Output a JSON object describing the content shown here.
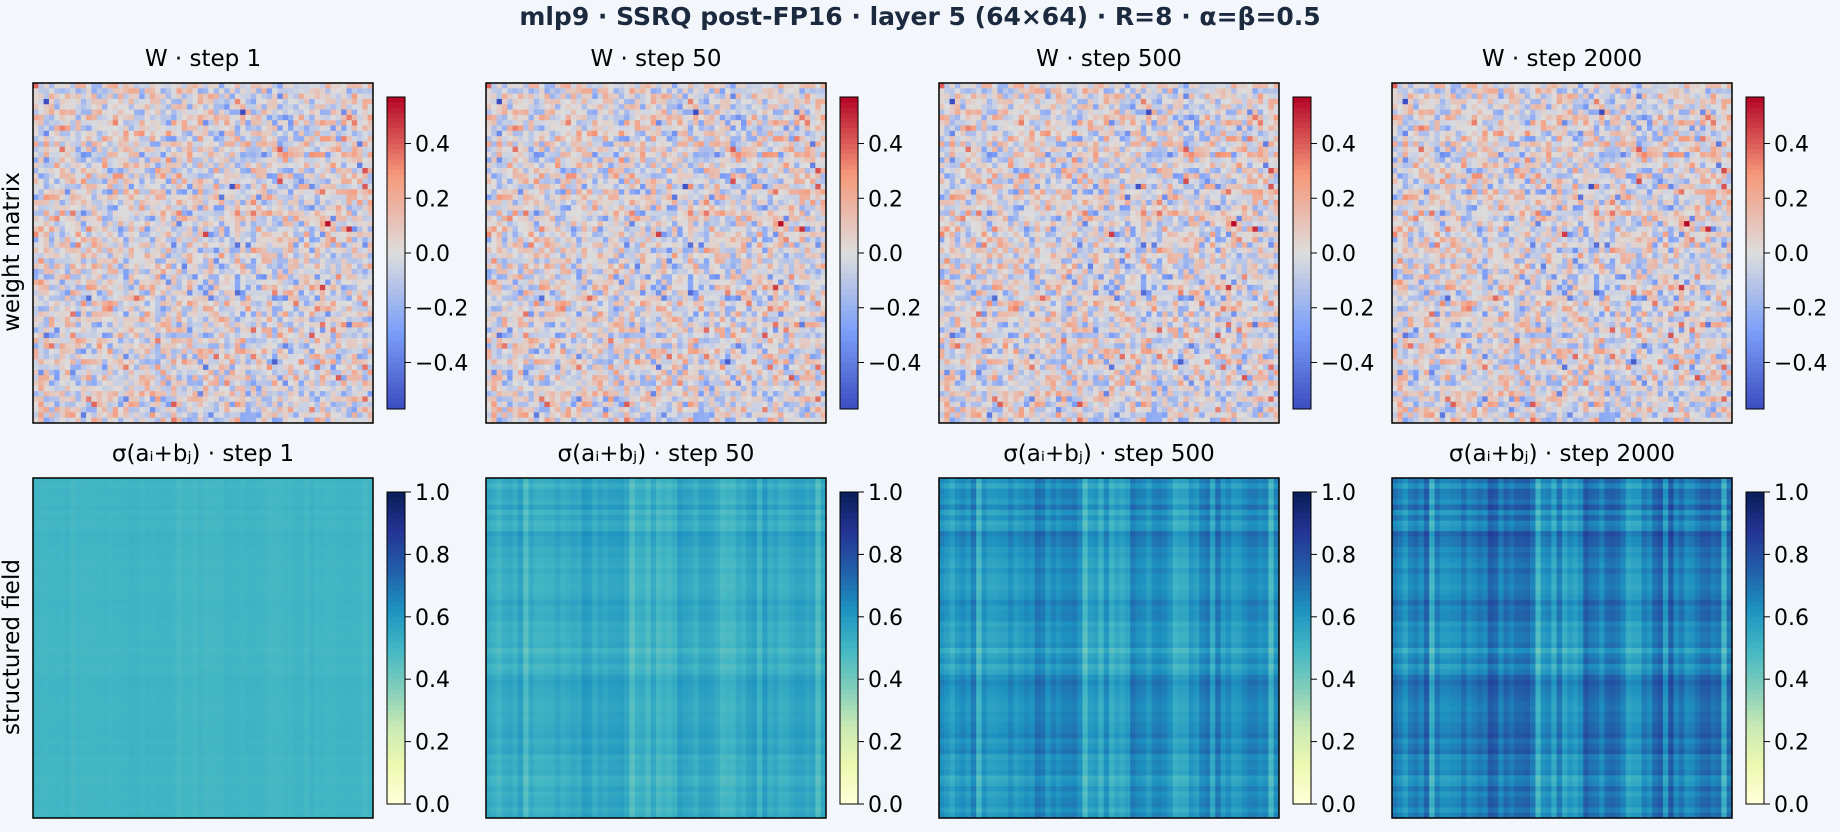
{
  "title": "mlp9 · SSRQ post-FP16 · layer 5 (64×64) · R=8 · α=β=0.5",
  "row_labels": [
    "weight matrix",
    "structured field"
  ],
  "panel_titles": [
    [
      "W  · step 1",
      "W  · step 50",
      "W  · step 500",
      "W  · step 2000"
    ],
    [
      "σ(aᵢ+bⱼ)  · step 1",
      "σ(aᵢ+bⱼ)  · step 50",
      "σ(aᵢ+bⱼ)  · step 500",
      "σ(aᵢ+bⱼ)  · step 2000"
    ]
  ],
  "chart_data": [
    {
      "type": "heatmap",
      "row": "weight matrix",
      "title": "W  · step 1",
      "grid_size": [
        64,
        64
      ],
      "colormap": "coolwarm",
      "clim": [
        -0.57,
        0.57
      ],
      "ticks": [
        -0.4,
        -0.2,
        0.0,
        0.2,
        0.4
      ],
      "tick_labels": [
        "−0.4",
        "−0.2",
        "0.0",
        "0.2",
        "0.4"
      ]
    },
    {
      "type": "heatmap",
      "row": "weight matrix",
      "title": "W  · step 50",
      "grid_size": [
        64,
        64
      ],
      "colormap": "coolwarm",
      "clim": [
        -0.57,
        0.57
      ],
      "ticks": [
        -0.4,
        -0.2,
        0.0,
        0.2,
        0.4
      ],
      "tick_labels": [
        "−0.4",
        "−0.2",
        "0.0",
        "0.2",
        "0.4"
      ]
    },
    {
      "type": "heatmap",
      "row": "weight matrix",
      "title": "W  · step 500",
      "grid_size": [
        64,
        64
      ],
      "colormap": "coolwarm",
      "clim": [
        -0.57,
        0.57
      ],
      "ticks": [
        -0.4,
        -0.2,
        0.0,
        0.2,
        0.4
      ],
      "tick_labels": [
        "−0.4",
        "−0.2",
        "0.0",
        "0.2",
        "0.4"
      ]
    },
    {
      "type": "heatmap",
      "row": "weight matrix",
      "title": "W  · step 2000",
      "grid_size": [
        64,
        64
      ],
      "colormap": "coolwarm",
      "clim": [
        -0.57,
        0.57
      ],
      "ticks": [
        -0.4,
        -0.2,
        0.0,
        0.2,
        0.4
      ],
      "tick_labels": [
        "−0.4",
        "−0.2",
        "0.0",
        "0.2",
        "0.4"
      ]
    },
    {
      "type": "heatmap",
      "row": "structured field",
      "title": "σ(aᵢ+bⱼ)  · step 1",
      "grid_size": [
        64,
        64
      ],
      "colormap": "YlGnBu",
      "clim": [
        0.0,
        1.0
      ],
      "ticks": [
        0.0,
        0.2,
        0.4,
        0.6,
        0.8,
        1.0
      ],
      "tick_labels": [
        "0.0",
        "0.2",
        "0.4",
        "0.6",
        "0.8",
        "1.0"
      ],
      "approx_mean": 0.5,
      "approx_spread": 0.01
    },
    {
      "type": "heatmap",
      "row": "structured field",
      "title": "σ(aᵢ+bⱼ)  · step 50",
      "grid_size": [
        64,
        64
      ],
      "colormap": "YlGnBu",
      "clim": [
        0.0,
        1.0
      ],
      "ticks": [
        0.0,
        0.2,
        0.4,
        0.6,
        0.8,
        1.0
      ],
      "tick_labels": [
        "0.0",
        "0.2",
        "0.4",
        "0.6",
        "0.8",
        "1.0"
      ],
      "approx_mean": 0.53,
      "approx_spread": 0.05
    },
    {
      "type": "heatmap",
      "row": "structured field",
      "title": "σ(aᵢ+bⱼ)  · step 500",
      "grid_size": [
        64,
        64
      ],
      "colormap": "YlGnBu",
      "clim": [
        0.0,
        1.0
      ],
      "ticks": [
        0.0,
        0.2,
        0.4,
        0.6,
        0.8,
        1.0
      ],
      "tick_labels": [
        "0.0",
        "0.2",
        "0.4",
        "0.6",
        "0.8",
        "1.0"
      ],
      "approx_mean": 0.6,
      "approx_spread": 0.08
    },
    {
      "type": "heatmap",
      "row": "structured field",
      "title": "σ(aᵢ+bⱼ)  · step 2000",
      "grid_size": [
        64,
        64
      ],
      "colormap": "YlGnBu",
      "clim": [
        0.0,
        1.0
      ],
      "ticks": [
        0.0,
        0.2,
        0.4,
        0.6,
        0.8,
        1.0
      ],
      "tick_labels": [
        "0.0",
        "0.2",
        "0.4",
        "0.6",
        "0.8",
        "1.0"
      ],
      "approx_mean": 0.65,
      "approx_spread": 0.1
    }
  ]
}
